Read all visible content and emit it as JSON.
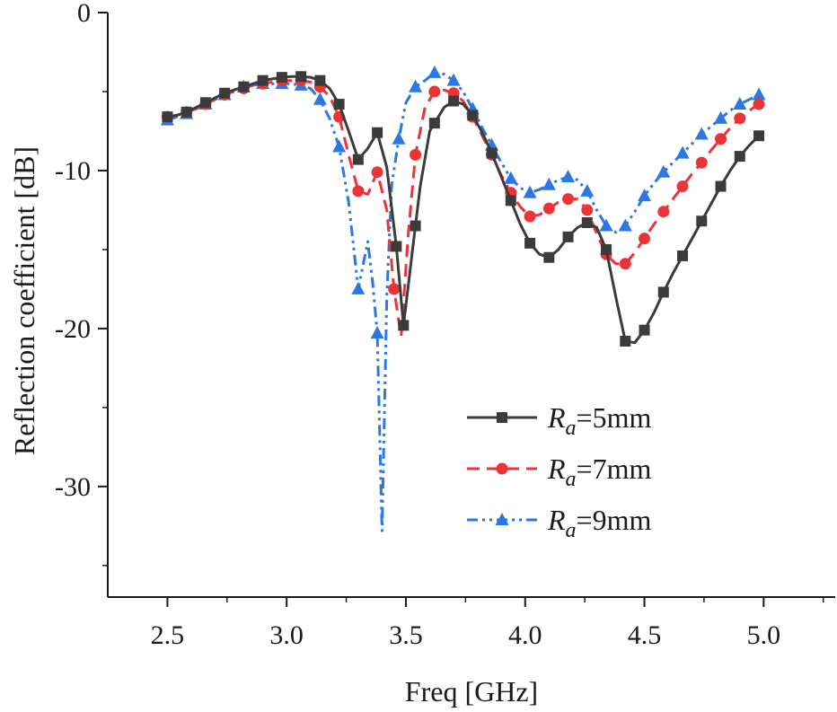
{
  "chart_data": {
    "type": "line",
    "xlabel": "Freq [GHz]",
    "ylabel": "Reflection coefficient [dB]",
    "xlim": [
      2.25,
      5.3
    ],
    "ylim": [
      -37,
      0
    ],
    "xticks": [
      2.5,
      3.0,
      3.5,
      4.0,
      4.5,
      5.0
    ],
    "xtick_labels": [
      "2.5",
      "3.0",
      "3.5",
      "4.0",
      "4.5",
      "5.0"
    ],
    "yticks": [
      0,
      -10,
      -20,
      -30
    ],
    "ytick_labels": [
      "0",
      "-10",
      "-20",
      "-30"
    ],
    "legend_position": "center-right",
    "series": [
      {
        "name": "5mm",
        "legend_symbol": "R",
        "legend_subscript": "a",
        "legend_eq": "=",
        "color": "#3b3b3b",
        "marker": "square",
        "dash": "solid",
        "x": [
          2.5,
          2.54,
          2.58,
          2.62,
          2.66,
          2.7,
          2.74,
          2.78,
          2.82,
          2.86,
          2.9,
          2.94,
          2.98,
          3.02,
          3.06,
          3.1,
          3.14,
          3.18,
          3.22,
          3.26,
          3.3,
          3.34,
          3.38,
          3.42,
          3.46,
          3.49,
          3.52,
          3.56,
          3.6,
          3.66,
          3.7,
          3.74,
          3.78,
          3.82,
          3.86,
          3.9,
          3.94,
          3.98,
          4.02,
          4.06,
          4.1,
          4.14,
          4.18,
          4.22,
          4.26,
          4.3,
          4.34,
          4.38,
          4.42,
          4.46,
          4.5,
          4.54,
          4.58,
          4.62,
          4.66,
          4.7,
          4.74,
          4.78,
          4.82,
          4.86,
          4.9,
          4.94,
          4.98
        ],
        "y": [
          -6.6,
          -6.5,
          -6.3,
          -6.0,
          -5.7,
          -5.4,
          -5.1,
          -4.9,
          -4.7,
          -4.5,
          -4.3,
          -4.2,
          -4.1,
          -4.05,
          -4.05,
          -4.1,
          -4.3,
          -4.8,
          -5.8,
          -7.5,
          -9.3,
          -8.6,
          -7.6,
          -9.8,
          -14.8,
          -19.8,
          -16.0,
          -11.0,
          -7.5,
          -6.0,
          -5.6,
          -5.8,
          -6.5,
          -7.6,
          -8.9,
          -10.4,
          -11.9,
          -13.4,
          -14.6,
          -15.3,
          -15.5,
          -15.0,
          -14.2,
          -13.6,
          -13.3,
          -13.6,
          -15.0,
          -18.0,
          -20.8,
          -20.9,
          -20.1,
          -19.0,
          -17.7,
          -16.5,
          -15.4,
          -14.3,
          -13.2,
          -12.1,
          -11.0,
          -10.0,
          -9.1,
          -8.4,
          -7.8
        ],
        "mx": [
          2.5,
          2.58,
          2.66,
          2.74,
          2.82,
          2.9,
          2.98,
          3.06,
          3.14,
          3.22,
          3.3,
          3.38,
          3.46,
          3.49,
          3.54,
          3.62,
          3.7,
          3.78,
          3.86,
          3.94,
          4.02,
          4.1,
          4.18,
          4.26,
          4.34,
          4.42,
          4.5,
          4.58,
          4.66,
          4.74,
          4.82,
          4.9,
          4.98
        ]
      },
      {
        "name": "7mm",
        "legend_symbol": "R",
        "legend_subscript": "a",
        "legend_eq": "=",
        "color": "#ee3338",
        "marker": "circle",
        "dash": "dash",
        "x": [
          2.5,
          2.54,
          2.58,
          2.62,
          2.66,
          2.7,
          2.74,
          2.78,
          2.82,
          2.86,
          2.9,
          2.94,
          2.98,
          3.02,
          3.06,
          3.1,
          3.14,
          3.18,
          3.22,
          3.26,
          3.3,
          3.34,
          3.38,
          3.42,
          3.45,
          3.48,
          3.51,
          3.54,
          3.58,
          3.62,
          3.66,
          3.7,
          3.74,
          3.78,
          3.82,
          3.86,
          3.9,
          3.94,
          3.98,
          4.02,
          4.06,
          4.1,
          4.14,
          4.18,
          4.22,
          4.26,
          4.3,
          4.34,
          4.38,
          4.42,
          4.46,
          4.5,
          4.54,
          4.58,
          4.62,
          4.66,
          4.7,
          4.74,
          4.78,
          4.82,
          4.86,
          4.9,
          4.94,
          4.98
        ],
        "y": [
          -6.6,
          -6.5,
          -6.3,
          -6.1,
          -5.8,
          -5.5,
          -5.2,
          -5.0,
          -4.8,
          -4.6,
          -4.5,
          -4.4,
          -4.3,
          -4.3,
          -4.3,
          -4.4,
          -4.7,
          -5.3,
          -6.6,
          -9.0,
          -11.3,
          -11.5,
          -10.1,
          -12.5,
          -17.5,
          -20.5,
          -14.0,
          -9.0,
          -6.0,
          -5.0,
          -4.9,
          -5.1,
          -5.6,
          -6.6,
          -7.8,
          -9.0,
          -10.3,
          -11.4,
          -12.3,
          -12.9,
          -12.8,
          -12.4,
          -12.0,
          -11.8,
          -11.8,
          -12.5,
          -14.0,
          -15.3,
          -15.9,
          -15.9,
          -15.2,
          -14.3,
          -13.4,
          -12.6,
          -11.8,
          -11.0,
          -10.2,
          -9.5,
          -8.7,
          -8.0,
          -7.3,
          -6.7,
          -6.2,
          -5.8
        ],
        "mx": [
          2.5,
          2.58,
          2.66,
          2.74,
          2.82,
          2.9,
          2.98,
          3.06,
          3.14,
          3.22,
          3.3,
          3.38,
          3.45,
          3.54,
          3.62,
          3.7,
          3.78,
          3.86,
          3.94,
          4.02,
          4.1,
          4.18,
          4.26,
          4.34,
          4.42,
          4.5,
          4.58,
          4.66,
          4.74,
          4.82,
          4.9,
          4.98
        ]
      },
      {
        "name": "9mm",
        "legend_symbol": "R",
        "legend_subscript": "a",
        "legend_eq": "=",
        "color": "#2b78e4",
        "marker": "triangle",
        "dash": "dashdotdot",
        "x": [
          2.5,
          2.54,
          2.58,
          2.62,
          2.66,
          2.7,
          2.74,
          2.78,
          2.82,
          2.86,
          2.9,
          2.94,
          2.98,
          3.02,
          3.06,
          3.1,
          3.14,
          3.18,
          3.22,
          3.26,
          3.3,
          3.32,
          3.34,
          3.36,
          3.38,
          3.4,
          3.42,
          3.44,
          3.47,
          3.5,
          3.54,
          3.58,
          3.62,
          3.66,
          3.7,
          3.74,
          3.78,
          3.82,
          3.86,
          3.9,
          3.94,
          3.98,
          4.02,
          4.06,
          4.1,
          4.14,
          4.18,
          4.22,
          4.26,
          4.3,
          4.34,
          4.38,
          4.42,
          4.46,
          4.5,
          4.54,
          4.58,
          4.62,
          4.66,
          4.7,
          4.74,
          4.78,
          4.82,
          4.86,
          4.9,
          4.94,
          4.98
        ],
        "y": [
          -6.8,
          -6.6,
          -6.4,
          -6.1,
          -5.8,
          -5.5,
          -5.2,
          -4.9,
          -4.7,
          -4.6,
          -4.5,
          -4.5,
          -4.5,
          -4.5,
          -4.6,
          -4.8,
          -5.5,
          -6.7,
          -8.5,
          -12.0,
          -17.5,
          -16.0,
          -14.5,
          -17.0,
          -20.3,
          -32.8,
          -18.0,
          -11.0,
          -8.0,
          -5.7,
          -4.7,
          -4.3,
          -3.8,
          -3.9,
          -4.3,
          -5.0,
          -6.1,
          -7.3,
          -8.4,
          -9.5,
          -10.5,
          -11.1,
          -11.4,
          -11.2,
          -10.9,
          -10.6,
          -10.4,
          -10.6,
          -11.3,
          -12.5,
          -13.5,
          -13.9,
          -13.5,
          -12.6,
          -11.6,
          -10.8,
          -10.1,
          -9.5,
          -8.9,
          -8.3,
          -7.7,
          -7.2,
          -6.7,
          -6.2,
          -5.8,
          -5.5,
          -5.2
        ],
        "mx": [
          2.5,
          2.58,
          2.66,
          2.74,
          2.82,
          2.9,
          2.98,
          3.06,
          3.14,
          3.22,
          3.3,
          3.38,
          3.47,
          3.54,
          3.62,
          3.7,
          3.78,
          3.86,
          3.94,
          4.02,
          4.1,
          4.18,
          4.26,
          4.34,
          4.42,
          4.5,
          4.58,
          4.66,
          4.74,
          4.82,
          4.9,
          4.98
        ]
      }
    ]
  }
}
